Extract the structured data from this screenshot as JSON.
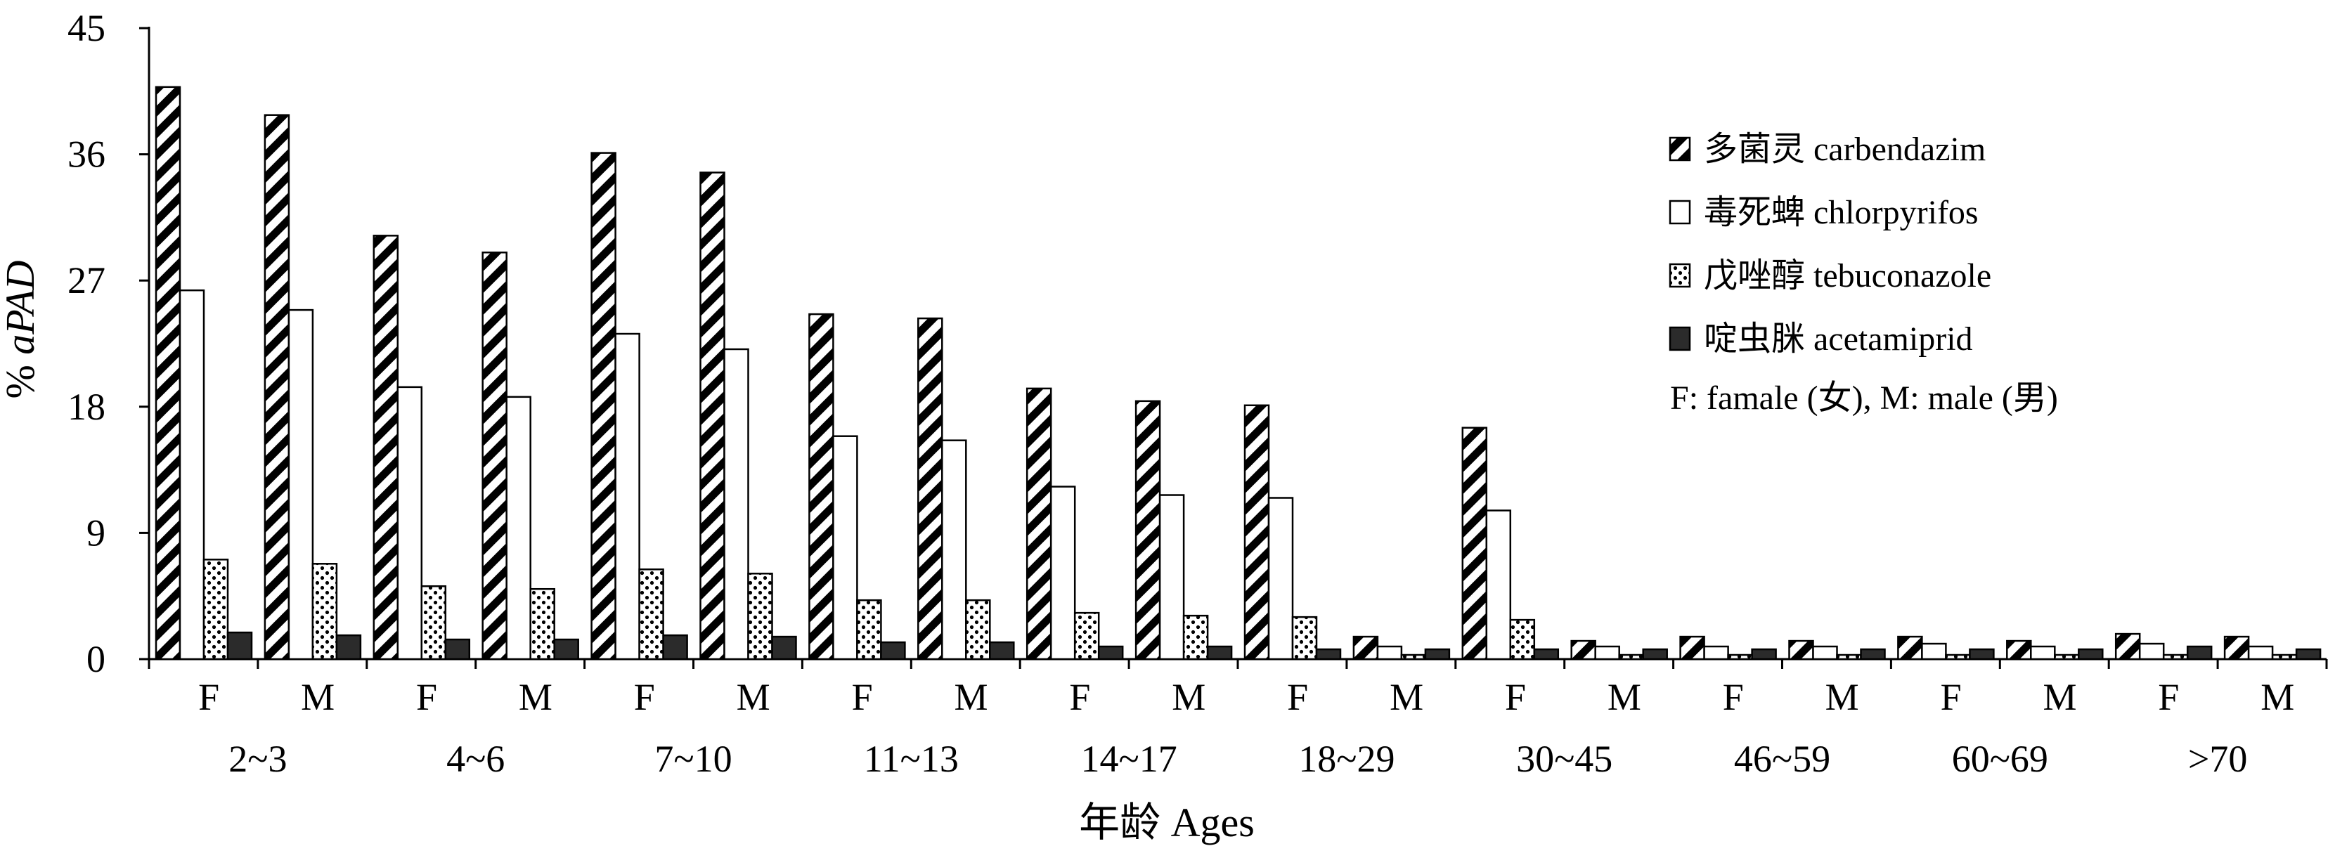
{
  "chart_data": {
    "type": "bar",
    "ylabel": "% aPAD",
    "ylabel_prefix": "% ",
    "ylabel_italic": "aPAD",
    "xlabel": "年龄 Ages",
    "ylim": [
      0,
      45
    ],
    "yticks": [
      "0",
      "9",
      "18",
      "27",
      "36",
      "45"
    ],
    "grid": false,
    "legend_position": "top-right",
    "legend_note": "F: famale (女), M: male (男)",
    "age_groups": [
      "2~3",
      "4~6",
      "7~10",
      "11~13",
      "14~17",
      "18~29",
      "30~45",
      "46~59",
      "60~69",
      ">70"
    ],
    "sex_labels": [
      "F",
      "M"
    ],
    "categories": [
      "2~3 F",
      "2~3 M",
      "4~6 F",
      "4~6 M",
      "7~10 F",
      "7~10 M",
      "11~13 F",
      "11~13 M",
      "14~17 F",
      "14~17 M",
      "18~29 F",
      "18~29 M",
      "30~45 F",
      "30~45 M",
      "46~59 F",
      "46~59 M",
      "60~69 F",
      "60~69 M",
      ">70 F",
      ">70 M"
    ],
    "series": [
      {
        "name": "多菌灵 carbendazim",
        "pattern": "diagonal-hatch",
        "values": [
          40.8,
          38.8,
          30.2,
          29.0,
          36.1,
          34.7,
          24.6,
          24.3,
          19.3,
          18.4,
          18.1,
          1.6,
          16.5,
          1.3,
          1.6,
          1.3,
          1.6,
          1.3,
          1.8,
          1.6
        ]
      },
      {
        "name": "毒死蜱 chlorpyrifos",
        "pattern": "white",
        "values": [
          26.3,
          24.9,
          19.4,
          18.7,
          23.2,
          22.1,
          15.9,
          15.6,
          12.3,
          11.7,
          11.5,
          0.9,
          10.6,
          0.9,
          0.9,
          0.9,
          1.1,
          0.9,
          1.1,
          0.9
        ]
      },
      {
        "name": "戊唑醇 tebuconazole",
        "pattern": "dotted",
        "values": [
          7.1,
          6.8,
          5.2,
          5.0,
          6.4,
          6.1,
          4.2,
          4.2,
          3.3,
          3.1,
          3.0,
          0.3,
          2.8,
          0.3,
          0.3,
          0.3,
          0.3,
          0.3,
          0.3,
          0.3
        ]
      },
      {
        "name": "啶虫脒 acetamiprid",
        "pattern": "solid-dark",
        "values": [
          1.9,
          1.7,
          1.4,
          1.4,
          1.7,
          1.6,
          1.2,
          1.2,
          0.9,
          0.9,
          0.7,
          0.7,
          0.7,
          0.7,
          0.7,
          0.7,
          0.7,
          0.7,
          0.9,
          0.7
        ]
      }
    ]
  }
}
